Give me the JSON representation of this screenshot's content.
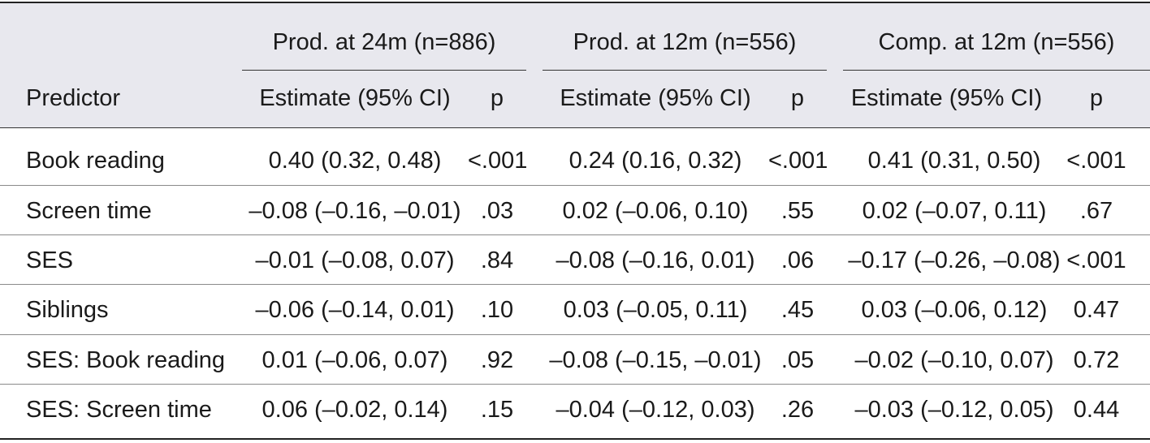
{
  "table": {
    "group_headers": [
      "Prod. at 24m (n=886)",
      "Prod. at 12m (n=556)",
      "Comp. at 12m (n=556)"
    ],
    "column_headers": {
      "predictor": "Predictor",
      "estimate": "Estimate (95% CI)",
      "p": "p"
    },
    "rows": [
      {
        "predictor": "Book reading",
        "cells": [
          "0.40 (0.32, 0.48)",
          "<.001",
          "0.24 (0.16, 0.32)",
          "<.001",
          "0.41 (0.31, 0.50)",
          "<.001"
        ]
      },
      {
        "predictor": "Screen time",
        "cells": [
          "–0.08 (–0.16, –0.01)",
          ".03",
          "0.02 (–0.06, 0.10)",
          ".55",
          "0.02 (–0.07, 0.11)",
          ".67"
        ]
      },
      {
        "predictor": "SES",
        "cells": [
          "–0.01 (–0.08, 0.07)",
          ".84",
          "–0.08 (–0.16, 0.01)",
          ".06",
          "–0.17 (–0.26, –0.08)",
          "<.001"
        ]
      },
      {
        "predictor": "Siblings",
        "cells": [
          "–0.06 (–0.14, 0.01)",
          ".10",
          "0.03 (–0.05, 0.11)",
          ".45",
          "0.03 (–0.06, 0.12)",
          "0.47"
        ]
      },
      {
        "predictor": "SES: Book reading",
        "cells": [
          "0.01 (–0.06, 0.07)",
          ".92",
          "–0.08 (–0.15, –0.01)",
          ".05",
          "–0.02 (–0.10, 0.07)",
          "0.72"
        ]
      },
      {
        "predictor": "SES: Screen time",
        "cells": [
          "0.06 (–0.02, 0.14)",
          ".15",
          "–0.04 (–0.12, 0.03)",
          ".26",
          "–0.03 (–0.12, 0.05)",
          "0.44"
        ]
      }
    ]
  }
}
